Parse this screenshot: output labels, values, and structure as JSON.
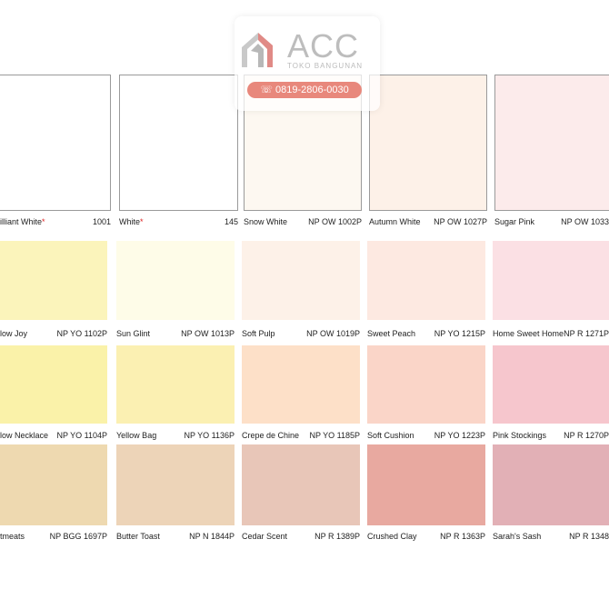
{
  "watermark": {
    "brand": "ACC",
    "tagline": "TOKO BANGUNAN",
    "phone": "0819-2806-0030"
  },
  "rows": [
    [
      {
        "name": "illiant White",
        "mark": "*",
        "code": "1001",
        "color": "#ffffff"
      },
      {
        "name": "White",
        "mark": "*",
        "code": "145",
        "color": "#ffffff"
      },
      {
        "name": "Snow White",
        "code": "NP OW 1002P",
        "color": "#fdf8f1"
      },
      {
        "name": "Autumn White",
        "code": "NP OW 1027P",
        "color": "#fdf1e8"
      },
      {
        "name": "Sugar Pink",
        "code": "NP OW 1033",
        "color": "#fcebeb"
      }
    ],
    [
      {
        "name": "low Joy",
        "code": "NP YO 1102P",
        "color": "#fbf4bb"
      },
      {
        "name": "Sun Glint",
        "code": "NP OW 1013P",
        "color": "#fefce8"
      },
      {
        "name": "Soft Pulp",
        "code": "NP OW 1019P",
        "color": "#fdf1e8"
      },
      {
        "name": "Sweet Peach",
        "code": "NP YO 1215P",
        "color": "#fde9e1"
      },
      {
        "name": "Home Sweet Home",
        "code": "NP R 1271P",
        "color": "#fbe0e4"
      }
    ],
    [
      {
        "name": "low Necklace",
        "code": "NP YO 1104P",
        "color": "#faf2a9"
      },
      {
        "name": "Yellow Bag",
        "code": "NP YO 1136P",
        "color": "#fbf0b2"
      },
      {
        "name": "Crepe de Chine",
        "code": "NP YO 1185P",
        "color": "#fde0c8"
      },
      {
        "name": "Soft Cushion",
        "code": "NP YO 1223P",
        "color": "#fad5c8"
      },
      {
        "name": "Pink Stockings",
        "code": "NP R 1270P",
        "color": "#f6c6cd"
      }
    ],
    [
      {
        "name": "tmeats",
        "code": "NP BGG 1697P",
        "color": "#eed9b0"
      },
      {
        "name": "Butter Toast",
        "code": "NP N 1844P",
        "color": "#edd4b8"
      },
      {
        "name": "Cedar Scent",
        "code": "NP R 1389P",
        "color": "#e8c6b8"
      },
      {
        "name": "Crushed Clay",
        "code": "NP R 1363P",
        "color": "#e8a9a0"
      },
      {
        "name": "Sarah's Sash",
        "code": "NP R 1348",
        "color": "#e2b0b6"
      }
    ]
  ]
}
